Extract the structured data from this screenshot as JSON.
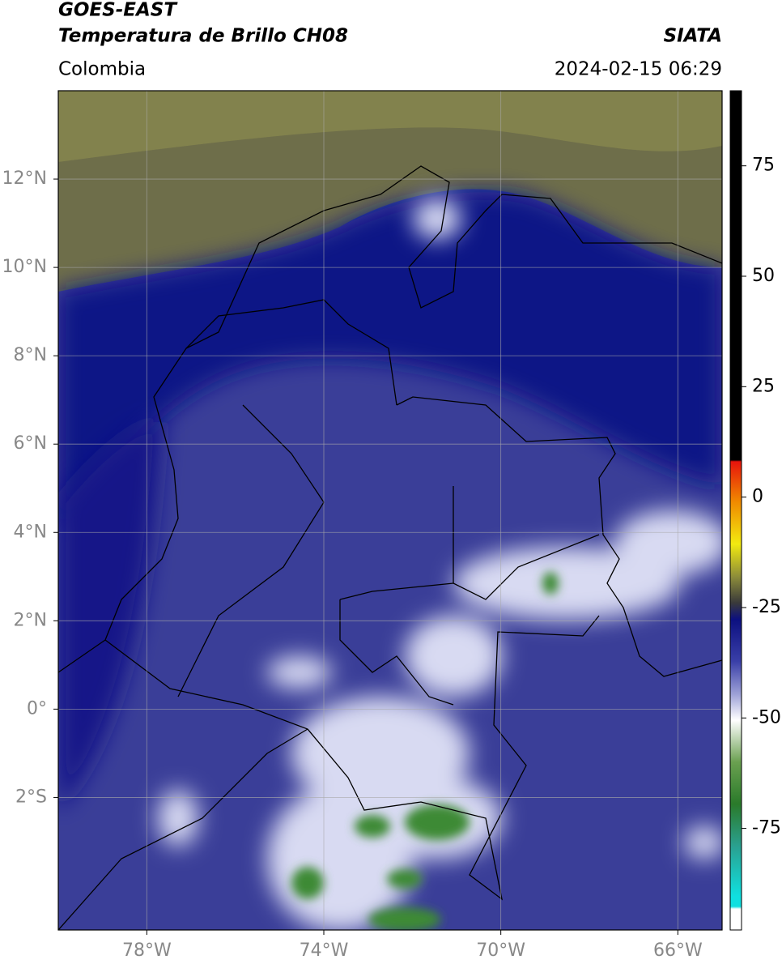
{
  "header": {
    "title": "GOES-EAST",
    "product": "Temperatura de Brillo CH08",
    "source": "SIATA",
    "region": "Colombia",
    "datetime": "2024-02-15 06:29"
  },
  "map": {
    "xlim": [
      -80,
      -65
    ],
    "ylim": [
      -5,
      14
    ],
    "xticks": [
      {
        "value": -78,
        "label": "78°W"
      },
      {
        "value": -74,
        "label": "74°W"
      },
      {
        "value": -70,
        "label": "70°W"
      },
      {
        "value": -66,
        "label": "66°W"
      }
    ],
    "yticks": [
      {
        "value": 12,
        "label": "12°N"
      },
      {
        "value": 10,
        "label": "10°N"
      },
      {
        "value": 8,
        "label": "8°N"
      },
      {
        "value": 6,
        "label": "6°N"
      },
      {
        "value": 4,
        "label": "4°N"
      },
      {
        "value": 2,
        "label": "2°N"
      },
      {
        "value": 0,
        "label": "0°"
      },
      {
        "value": -2,
        "label": "2°S"
      }
    ],
    "grid": true
  },
  "colorbar": {
    "lim": [
      -98,
      92
    ],
    "ticks": [
      75,
      50,
      25,
      0,
      -25,
      -50,
      -75
    ]
  }
}
